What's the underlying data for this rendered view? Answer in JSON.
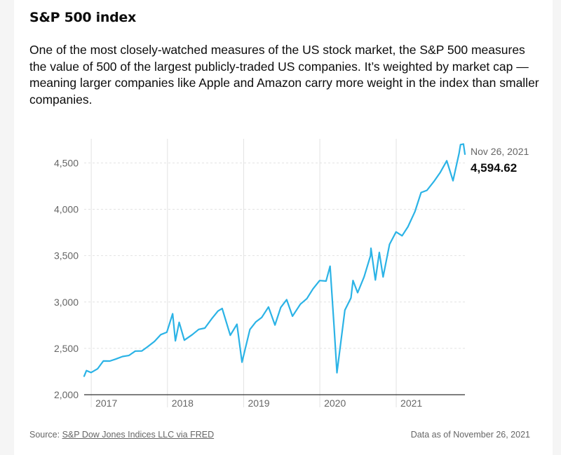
{
  "header": {
    "title": "S&P 500 index",
    "description": "One of the most closely-watched measures of the US stock market, the S&P 500 measures the value of 500 of the largest publicly-traded US companies. It’s weighted by market cap — meaning larger companies like Apple and Amazon carry more weight in the index than smaller companies."
  },
  "footer": {
    "source_prefix": "Source: ",
    "source_link": "S&P Dow Jones Indices LLC via FRED",
    "data_as_of": "Data as of November 26, 2021"
  },
  "colors": {
    "line": "#2bb3e6",
    "grid": "#e2e2e2",
    "axis": "#333333"
  },
  "chart_data": {
    "type": "line",
    "title": "S&P 500 index",
    "xlabel": "",
    "ylabel": "",
    "ylim": [
      2000,
      4760
    ],
    "xlim": [
      "2016-11-28",
      "2021-11-26"
    ],
    "y_ticks": [
      2000,
      2500,
      3000,
      3500,
      4000,
      4500
    ],
    "y_tick_labels": [
      "2,000",
      "2,500",
      "3,000",
      "3,500",
      "4,000",
      "4,500"
    ],
    "x_ticks": [
      "2017-01-01",
      "2018-01-01",
      "2019-01-01",
      "2020-01-01",
      "2021-01-01"
    ],
    "x_tick_labels": [
      "2017",
      "2018",
      "2019",
      "2020",
      "2021"
    ],
    "grid": true,
    "last_point": {
      "date": "Nov 26, 2021",
      "value": "4,594.62"
    },
    "series": [
      {
        "name": "",
        "x": [
          "2016-11-28",
          "2016-12-09",
          "2016-12-31",
          "2017-01-31",
          "2017-02-28",
          "2017-03-31",
          "2017-04-28",
          "2017-05-31",
          "2017-06-30",
          "2017-07-31",
          "2017-08-31",
          "2017-09-29",
          "2017-10-31",
          "2017-11-30",
          "2017-12-29",
          "2018-01-26",
          "2018-02-08",
          "2018-02-26",
          "2018-03-23",
          "2018-04-30",
          "2018-05-31",
          "2018-06-29",
          "2018-07-31",
          "2018-08-31",
          "2018-09-20",
          "2018-10-29",
          "2018-11-30",
          "2018-12-24",
          "2019-01-31",
          "2019-02-28",
          "2019-03-29",
          "2019-04-30",
          "2019-05-31",
          "2019-06-28",
          "2019-07-26",
          "2019-08-23",
          "2019-09-30",
          "2019-10-31",
          "2019-11-29",
          "2019-12-31",
          "2020-01-31",
          "2020-02-19",
          "2020-03-09",
          "2020-03-23",
          "2020-04-30",
          "2020-05-29",
          "2020-06-08",
          "2020-06-30",
          "2020-07-31",
          "2020-08-31",
          "2020-09-02",
          "2020-09-23",
          "2020-10-12",
          "2020-10-30",
          "2020-11-30",
          "2020-12-31",
          "2021-01-29",
          "2021-02-26",
          "2021-03-31",
          "2021-04-30",
          "2021-05-28",
          "2021-06-30",
          "2021-07-30",
          "2021-08-31",
          "2021-09-30",
          "2021-10-29",
          "2021-11-05",
          "2021-11-19",
          "2021-11-26"
        ],
        "values": [
          2200,
          2260,
          2239,
          2279,
          2364,
          2363,
          2384,
          2412,
          2423,
          2470,
          2472,
          2519,
          2575,
          2648,
          2674,
          2873,
          2581,
          2780,
          2588,
          2648,
          2705,
          2718,
          2816,
          2902,
          2930,
          2641,
          2760,
          2351,
          2704,
          2784,
          2834,
          2946,
          2752,
          2942,
          3025,
          2847,
          2977,
          3037,
          3141,
          3231,
          3226,
          3386,
          2746,
          2237,
          2912,
          3044,
          3232,
          3100,
          3271,
          3500,
          3580,
          3237,
          3534,
          3270,
          3622,
          3756,
          3714,
          3811,
          3973,
          4181,
          4204,
          4298,
          4395,
          4523,
          4308,
          4605,
          4697,
          4704,
          4594.62
        ]
      }
    ]
  }
}
